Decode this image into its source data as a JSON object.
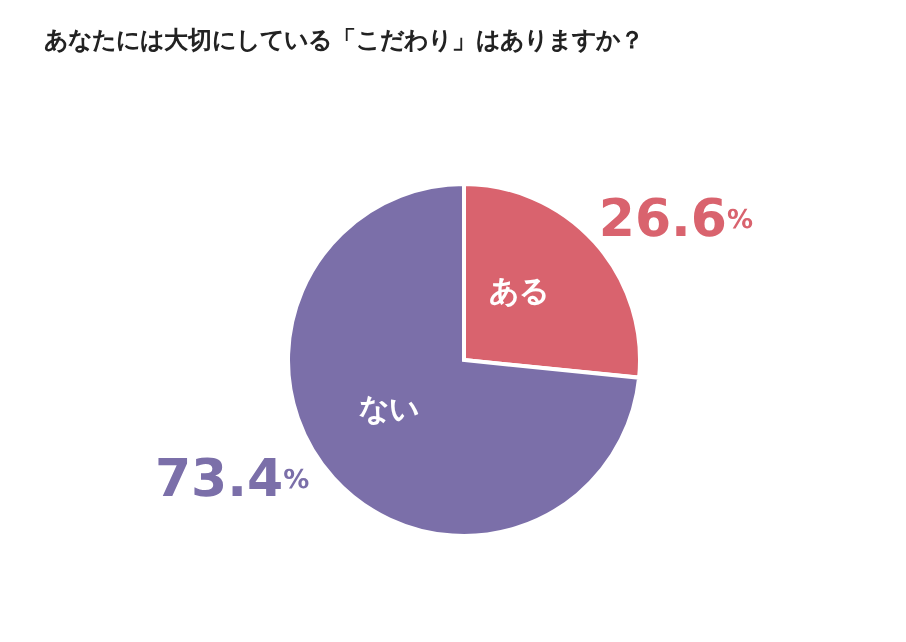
{
  "chart_data": {
    "type": "pie",
    "title": "あなたには大切にしている「こだわり」はありますか？",
    "categories": [
      "ある",
      "ない"
    ],
    "values": [
      26.6,
      73.4
    ],
    "colors": [
      "#d9636e",
      "#7b6fa9"
    ],
    "value_labels": [
      "26.6%",
      "73.4%"
    ],
    "legend": false
  }
}
